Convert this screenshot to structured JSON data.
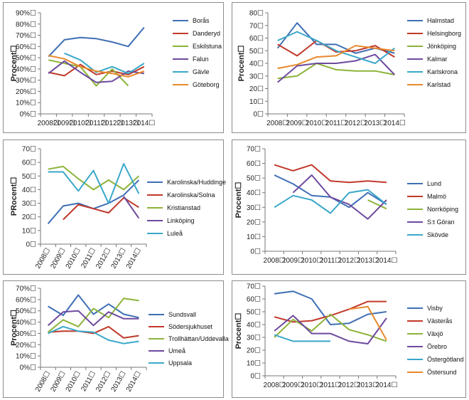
{
  "colors": [
    "#3f6fb5",
    "#c0392b",
    "#8db33a",
    "#6e4a9e",
    "#3aa8c9",
    "#e8892b"
  ],
  "chart_data": [
    {
      "type": "line",
      "ylabel": "Procent☐",
      "yticks": [
        "0%☐",
        "10%☐",
        "20%☐",
        "30%☐",
        "40%☐",
        "50%☐",
        "60%☐",
        "70%☐",
        "80%☐",
        "90%☐"
      ],
      "ylim": [
        0,
        90
      ],
      "categories": [
        "2008☐",
        "2009☐",
        "2010☐",
        "2011☐",
        "2012☐",
        "2013☐",
        "2014☐"
      ],
      "xrotate": false,
      "series": [
        {
          "name": "Borås",
          "values": [
            51,
            66,
            68,
            67,
            64,
            60,
            77
          ]
        },
        {
          "name": "Danderyd",
          "values": [
            37,
            34,
            44,
            35,
            38,
            35,
            42
          ]
        },
        {
          "name": "Eskilstuna",
          "values": [
            48,
            45,
            42,
            25,
            40,
            25,
            null
          ]
        },
        {
          "name": "Falun",
          "values": [
            36,
            47,
            37,
            28,
            29,
            38,
            36
          ]
        },
        {
          "name": "Gävle",
          "values": [
            null,
            54,
            48,
            37,
            42,
            36,
            45
          ]
        },
        {
          "name": "Göteborg",
          "values": [
            52,
            49,
            42,
            38,
            36,
            33,
            38
          ]
        }
      ]
    },
    {
      "type": "line",
      "ylabel": "Procent☐",
      "yticks": [
        "0☐",
        "10☐",
        "20☐",
        "30☐",
        "40☐",
        "50☐",
        "60☐",
        "70☐",
        "80☐"
      ],
      "ylim": [
        0,
        80
      ],
      "categories": [
        "2008☐",
        "2009☐",
        "2010☐",
        "2011☐",
        "2012☐",
        "2013☐",
        "2014☐"
      ],
      "xrotate": false,
      "series": [
        {
          "name": "Halmstad",
          "values": [
            52,
            72,
            55,
            55,
            48,
            52,
            48
          ]
        },
        {
          "name": "Helsingborg",
          "values": [
            55,
            46,
            58,
            49,
            50,
            54,
            45
          ]
        },
        {
          "name": "Jönköping",
          "values": [
            28,
            30,
            40,
            35,
            34,
            34,
            31
          ]
        },
        {
          "name": "Kalmar",
          "values": [
            25,
            38,
            40,
            40,
            42,
            47,
            31
          ]
        },
        {
          "name": "Karlskrona",
          "values": [
            58,
            65,
            58,
            50,
            45,
            40,
            52
          ]
        },
        {
          "name": "Karlstad",
          "values": [
            36,
            39,
            45,
            46,
            54,
            52,
            50
          ]
        }
      ]
    },
    {
      "type": "line",
      "ylabel": "PRocent☐",
      "yticks": [
        "0☐",
        "10☐",
        "20☐",
        "30☐",
        "40☐",
        "50☐",
        "60☐",
        "70☐"
      ],
      "ylim": [
        0,
        70
      ],
      "categories": [
        "2008☐",
        "2009☐",
        "2010☐",
        "2011☐",
        "2012☐",
        "2013☐",
        "2014☐"
      ],
      "xrotate": true,
      "series": [
        {
          "name": "Karolinska/Huddinge",
          "values": [
            15,
            28,
            30,
            26,
            30,
            36,
            47
          ]
        },
        {
          "name": "Karolinska/Solna",
          "values": [
            null,
            18,
            29,
            26,
            23,
            34,
            27
          ]
        },
        {
          "name": "Kristianstad",
          "values": [
            55,
            57,
            48,
            40,
            47,
            40,
            50
          ]
        },
        {
          "name": "Linköping",
          "values": [
            null,
            null,
            null,
            null,
            null,
            35,
            19
          ]
        },
        {
          "name": "Luleå",
          "values": [
            53,
            53,
            39,
            54,
            30,
            59,
            37
          ]
        }
      ]
    },
    {
      "type": "line",
      "ylabel": "Procent☐",
      "yticks": [
        "0☐",
        "10☐",
        "20☐",
        "30☐",
        "40☐",
        "50☐",
        "60☐",
        "70☐"
      ],
      "ylim": [
        0,
        70
      ],
      "categories": [
        "2008☐",
        "2009☐",
        "2010☐",
        "2011☐",
        "2012☐",
        "2013☐",
        "2014☐"
      ],
      "xrotate": false,
      "series": [
        {
          "name": "Lund",
          "values": [
            52,
            46,
            38,
            37,
            30,
            40,
            32
          ]
        },
        {
          "name": "Malmö",
          "values": [
            59,
            55,
            59,
            48,
            47,
            48,
            47
          ]
        },
        {
          "name": "Norrköping",
          "values": [
            null,
            null,
            null,
            null,
            null,
            35,
            29
          ]
        },
        {
          "name": "S:t Göran",
          "values": [
            null,
            40,
            52,
            37,
            32,
            22,
            35
          ]
        },
        {
          "name": "Skövde",
          "values": [
            30,
            38,
            35,
            26,
            40,
            42,
            32
          ]
        }
      ]
    },
    {
      "type": "line",
      "ylabel": "Procent☐",
      "yticks": [
        "0%☐",
        "10%☐",
        "20%☐",
        "30%☐",
        "40%☐",
        "50%☐",
        "60%☐",
        "70%☐"
      ],
      "ylim": [
        0,
        70
      ],
      "categories": [
        "2008☐",
        "2009☐",
        "2010☐",
        "2011☐",
        "2012☐",
        "2013☐",
        "2014☐"
      ],
      "xrotate": true,
      "series": [
        {
          "name": "Sundsvall",
          "values": [
            54,
            46,
            64,
            47,
            56,
            47,
            44
          ]
        },
        {
          "name": "Södersjukhuset",
          "values": [
            31,
            32,
            32,
            30,
            36,
            26,
            28
          ]
        },
        {
          "name": "Trollhättan/Uddevalla",
          "values": [
            31,
            42,
            36,
            52,
            44,
            61,
            59
          ]
        },
        {
          "name": "Umeå",
          "values": [
            37,
            49,
            50,
            37,
            49,
            43,
            43
          ]
        },
        {
          "name": "Uppsala",
          "values": [
            30,
            36,
            32,
            31,
            24,
            21,
            23
          ]
        }
      ]
    },
    {
      "type": "line",
      "ylabel": "Procent☐",
      "yticks": [
        "0☐",
        "10☐",
        "20☐",
        "30☐",
        "40☐",
        "50☐",
        "60☐",
        "70☐"
      ],
      "ylim": [
        0,
        70
      ],
      "categories": [
        "2008☐",
        "2009☐",
        "2010☐",
        "2011☐",
        "2012☐",
        "2013☐",
        "2014☐"
      ],
      "xrotate": false,
      "series": [
        {
          "name": "Visby",
          "values": [
            64,
            66,
            60,
            40,
            41,
            48,
            50
          ]
        },
        {
          "name": "Västerås",
          "values": [
            46,
            42,
            43,
            47,
            52,
            58,
            58
          ]
        },
        {
          "name": "Växjö",
          "values": [
            30,
            44,
            35,
            48,
            36,
            32,
            27
          ]
        },
        {
          "name": "Örebro",
          "values": [
            35,
            47,
            33,
            33,
            27,
            25,
            45
          ]
        },
        {
          "name": "Östergötland",
          "values": [
            32,
            27,
            27,
            27,
            null,
            null,
            null
          ]
        },
        {
          "name": "Östersund",
          "values": [
            null,
            null,
            null,
            null,
            52,
            54,
            28
          ]
        }
      ]
    }
  ]
}
